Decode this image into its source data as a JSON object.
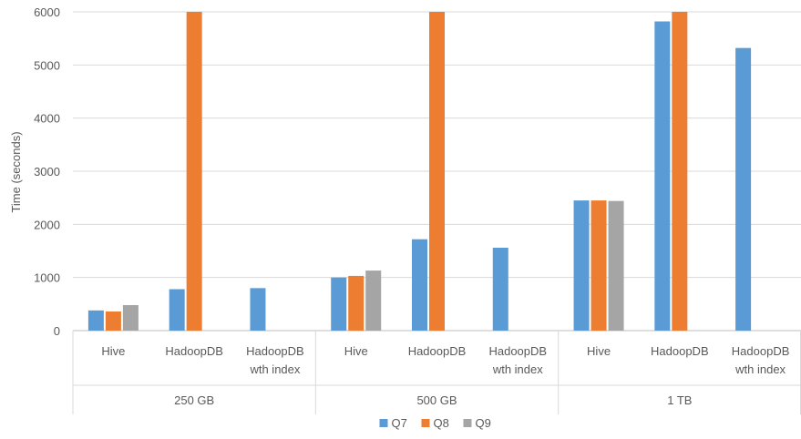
{
  "chart_data": {
    "type": "bar",
    "title": "",
    "xlabel": "",
    "ylabel": "Time (seconds)",
    "ylim": [
      0,
      6000
    ],
    "yticks": [
      0,
      1000,
      2000,
      3000,
      4000,
      5000,
      6000
    ],
    "grid": true,
    "legend_position": "bottom",
    "groups": [
      {
        "label": "250 GB",
        "categories": [
          "Hive",
          "HadoopDB",
          "HadoopDB wth index"
        ]
      },
      {
        "label": "500 GB",
        "categories": [
          "Hive",
          "HadoopDB",
          "HadoopDB wth index"
        ]
      },
      {
        "label": "1 TB",
        "categories": [
          "Hive",
          "HadoopDB",
          "HadoopDB wth index"
        ]
      }
    ],
    "series": [
      {
        "name": "Q7",
        "color": "#5b9bd5",
        "values": [
          380,
          780,
          800,
          1000,
          1720,
          1560,
          2450,
          5820,
          5320
        ]
      },
      {
        "name": "Q8",
        "color": "#ed7d31",
        "values": [
          360,
          6000,
          null,
          1030,
          6000,
          null,
          2450,
          6000,
          null
        ]
      },
      {
        "name": "Q9",
        "color": "#a5a5a5",
        "values": [
          480,
          null,
          null,
          1130,
          null,
          null,
          2440,
          null,
          null
        ]
      }
    ]
  }
}
